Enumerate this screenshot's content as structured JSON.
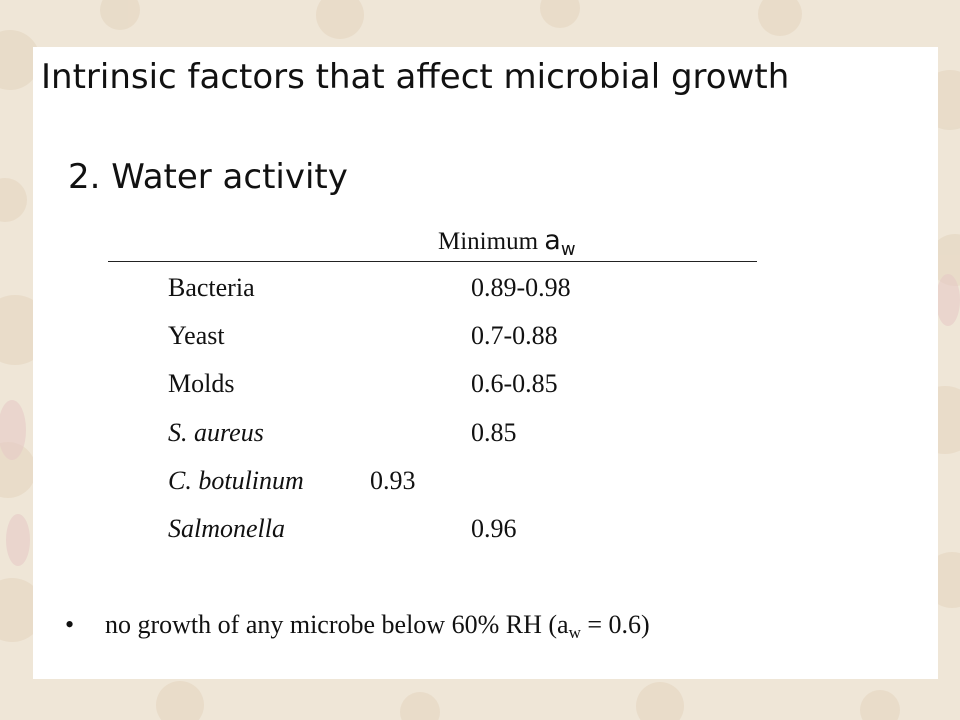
{
  "slide": {
    "title": "Intrinsic factors that affect microbial growth",
    "subtitle": "2. Water activity",
    "table": {
      "header_prefix": "Minimum ",
      "header_symbol": "a",
      "header_subscript": "w",
      "rows": [
        {
          "organism": "Bacteria",
          "value": "0.89-0.98"
        },
        {
          "organism": "Yeast",
          "value": "0.7-0.88"
        },
        {
          "organism": "Molds",
          "value": "0.6-0.85"
        },
        {
          "organism": "S. aureus",
          "value": "0.85"
        },
        {
          "organism": "C. botulinum",
          "value": "0.93"
        },
        {
          "organism": "Salmonella",
          "value": "0.96"
        }
      ]
    },
    "note": {
      "bullet": "•",
      "text_before": "no growth of any microbe below 60% RH (a",
      "subscript": "w",
      "text_after": " = 0.6)"
    }
  }
}
